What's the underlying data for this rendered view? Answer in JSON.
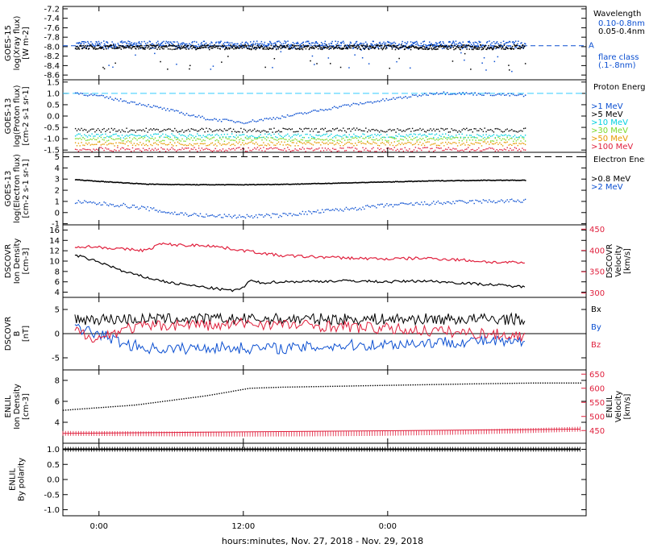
{
  "chart_data": [
    {
      "type": "scatter",
      "ylabel_lines": [
        "GOES-15",
        "log(Xray flux)",
        "[W m-2]"
      ],
      "yticks": [
        "-7.2",
        "-7.4",
        "-7.6",
        "-7.8",
        "-8.0",
        "-8.2",
        "-8.4",
        "-8.6"
      ],
      "ylim": [
        -8.7,
        -7.15
      ],
      "legend_title": "Wavelength",
      "series": [
        {
          "name": "0.10-0.8nm",
          "color": "#0b4fd1",
          "y_center": -7.95,
          "y_spread": 0.08,
          "end_x": 35.4
        },
        {
          "name": "0.05-0.4nm",
          "color": "#000000",
          "y_center": -8.0,
          "y_spread": 0.05,
          "end_x": 35.4
        }
      ],
      "reference_lines": [
        {
          "y": -7.98,
          "color": "#0b4fd1",
          "label": "A"
        }
      ],
      "notes": [
        "flare class",
        "(.1-.8nm)"
      ]
    },
    {
      "type": "scatter",
      "ylabel_lines": [
        "GOES-13",
        "log(Proton flux)",
        "[cm-2 s-1 sr-1]"
      ],
      "yticks": [
        "1.5",
        "1.0",
        "0.5",
        "0.0",
        "-0.5",
        "-1.0",
        "-1.5"
      ],
      "ylim": [
        -1.6,
        1.6
      ],
      "legend_title": "Proton Energies",
      "series": [
        {
          "name": ">1 MeV",
          "color": "#0b4fd1"
        },
        {
          "name": ">5 MeV",
          "color": "#000000",
          "y_center": -0.6
        },
        {
          "name": ">10 MeV",
          "color": "#00d0e0",
          "y_center": -0.85
        },
        {
          "name": ">30 MeV",
          "color": "#7cd92b",
          "y_center": -1.0
        },
        {
          "name": ">50 MeV",
          "color": "#e69a00",
          "y_center": -1.2
        },
        {
          "name": ">100 MeV",
          "color": "#e0203d",
          "y_center": -1.45
        }
      ],
      "proton_1mev_curve": {
        "x": [
          -2,
          0,
          4,
          9,
          12,
          16,
          20,
          24,
          28,
          33,
          35.4
        ],
        "y": [
          1.05,
          0.9,
          0.5,
          -0.1,
          -0.25,
          0.05,
          0.45,
          0.75,
          1.05,
          0.98,
          0.93
        ]
      },
      "reference_lines": [
        {
          "y": 1.0,
          "color": "#33ccff"
        }
      ]
    },
    {
      "type": "scatter",
      "ylabel_lines": [
        "GOES-13",
        "log(Electron flux)",
        "[cm-2 s-1 sr-1]"
      ],
      "yticks": [
        "5",
        "4",
        "3",
        "2",
        "1",
        "0",
        "-1"
      ],
      "ylim": [
        -1.1,
        5.4
      ],
      "legend_title": "Electron Energies",
      "series": [
        {
          "name": ">0.8 MeV",
          "color": "#000000"
        },
        {
          "name": ">2 MeV",
          "color": "#0b4fd1"
        }
      ],
      "electron_08_curve": {
        "x": [
          -2,
          0,
          4,
          8,
          12,
          16,
          20,
          24,
          28,
          32,
          35.4
        ],
        "y": [
          3.0,
          2.85,
          2.6,
          2.55,
          2.55,
          2.6,
          2.7,
          2.8,
          2.9,
          2.95,
          2.95
        ]
      },
      "electron_2_curve": {
        "x": [
          -2,
          0,
          2,
          4,
          6,
          9,
          12,
          15,
          18,
          21,
          24,
          28,
          32,
          35.4
        ],
        "y": [
          1.0,
          0.85,
          0.7,
          0.4,
          0.0,
          -0.25,
          -0.3,
          -0.2,
          0.1,
          0.4,
          0.7,
          0.9,
          1.05,
          1.1
        ]
      },
      "reference_lines": [
        {
          "y": 5.0,
          "color": "#000000"
        }
      ]
    },
    {
      "type": "line",
      "ylabel_lines": [
        "DSCOVR",
        "Ion Density",
        "[cm-3]"
      ],
      "yticks": [
        "16",
        "14",
        "12",
        "10",
        "8",
        "6",
        "4"
      ],
      "ylim": [
        3,
        17
      ],
      "right_ylabel_lines": [
        "DSCOVR",
        "Velocity",
        "[km/s]"
      ],
      "right_yticks": [
        "450",
        "400",
        "350",
        "300"
      ],
      "right_ylim": [
        290,
        460
      ],
      "series": [
        {
          "name": "Ion Density",
          "color": "#000000",
          "x": [
            -2,
            -1,
            0,
            1,
            2,
            4,
            6,
            8,
            10,
            11,
            12,
            12.5,
            13.5,
            15,
            18,
            21,
            24,
            27,
            30,
            33,
            35.4
          ],
          "y": [
            11.2,
            10.5,
            9.8,
            9.0,
            8.0,
            6.8,
            5.8,
            5.2,
            4.6,
            4.3,
            4.8,
            6.2,
            5.8,
            6.0,
            6.1,
            6.2,
            6.0,
            6.2,
            5.8,
            5.4,
            5.0
          ]
        },
        {
          "name": "Velocity",
          "color": "#e0203d",
          "axis": "right",
          "x": [
            -2,
            0,
            2,
            4,
            5,
            6,
            7,
            9,
            12,
            15,
            18,
            21,
            24,
            27,
            30,
            33,
            35.4
          ],
          "y": [
            410,
            408,
            403,
            400,
            415,
            414,
            412,
            412,
            400,
            388,
            385,
            382,
            380,
            382,
            378,
            372,
            371
          ]
        }
      ]
    },
    {
      "type": "line",
      "ylabel_lines": [
        "DSCOVR",
        "B",
        "[nT]"
      ],
      "yticks": [
        "5",
        "0",
        "-5"
      ],
      "ylim": [
        -7.5,
        7.5
      ],
      "legend": [
        {
          "name": "Bx",
          "color": "#000000"
        },
        {
          "name": "By",
          "color": "#0b4fd1"
        },
        {
          "name": "Bz",
          "color": "#e0203d"
        }
      ],
      "series": [
        {
          "name": "Bx",
          "color": "#000000",
          "base": 3.0,
          "amp": 1.2
        },
        {
          "name": "By",
          "color": "#0b4fd1",
          "x": [
            -2,
            0,
            2,
            4,
            6,
            8,
            10,
            12,
            16,
            20,
            24,
            28,
            32,
            35.4
          ],
          "y": [
            1.0,
            0.0,
            -2.0,
            -3.0,
            -3.2,
            -3.0,
            -2.8,
            -3.0,
            -3.0,
            -2.5,
            -2.2,
            -1.8,
            -1.5,
            -2.0
          ]
        },
        {
          "name": "Bz",
          "color": "#e0203d",
          "x": [
            -2,
            0,
            2,
            4,
            6,
            8,
            10,
            12,
            16,
            20,
            24,
            28,
            32,
            35.4
          ],
          "y": [
            0.5,
            -1.0,
            1.0,
            1.5,
            1.8,
            2.0,
            1.5,
            2.2,
            1.8,
            1.5,
            1.0,
            0.5,
            0.0,
            -0.5
          ]
        }
      ]
    },
    {
      "type": "line",
      "ylabel_lines": [
        "ENLIL",
        "Ion Density",
        "[cm-3]"
      ],
      "yticks": [
        "8",
        "6",
        "4"
      ],
      "ylim": [
        2,
        9
      ],
      "right_ylabel_lines": [
        "ENLIL",
        "Velocity",
        "[km/s]"
      ],
      "right_yticks": [
        "650",
        "600",
        "550",
        "500",
        "450"
      ],
      "right_ylim": [
        405,
        665
      ],
      "series": [
        {
          "name": "Ion Density",
          "color": "#000000",
          "x": [
            -3,
            3,
            9,
            12.5,
            15,
            20,
            25,
            30,
            36,
            40
          ],
          "y": [
            5.2,
            5.7,
            6.6,
            7.3,
            7.4,
            7.5,
            7.6,
            7.7,
            7.8,
            7.8
          ]
        },
        {
          "name": "Velocity",
          "color": "#e0203d",
          "axis": "right",
          "x": [
            -3,
            6,
            12,
            18,
            24,
            30,
            36,
            40
          ],
          "y": [
            440,
            438,
            437,
            438,
            440,
            444,
            450,
            455
          ]
        }
      ]
    },
    {
      "type": "line",
      "ylabel_lines": [
        "ENLIL",
        "By polarity"
      ],
      "yticks": [
        "1.0",
        "0.5",
        "0.0",
        "-0.5",
        "-1.0"
      ],
      "ylim": [
        -1.2,
        1.2
      ],
      "series": [
        {
          "name": "By polarity",
          "color": "#000000",
          "x": [
            -3,
            40
          ],
          "y": [
            1.0,
            1.0
          ]
        }
      ]
    }
  ],
  "x_axis": {
    "xlim": [
      -3,
      40.5
    ],
    "tick_hours": [
      0,
      12,
      24
    ],
    "tick_labels": [
      "0:00",
      "12:00",
      "0:00"
    ],
    "title": "hours:minutes, Nov. 27, 2018 - Nov. 29, 2018"
  }
}
